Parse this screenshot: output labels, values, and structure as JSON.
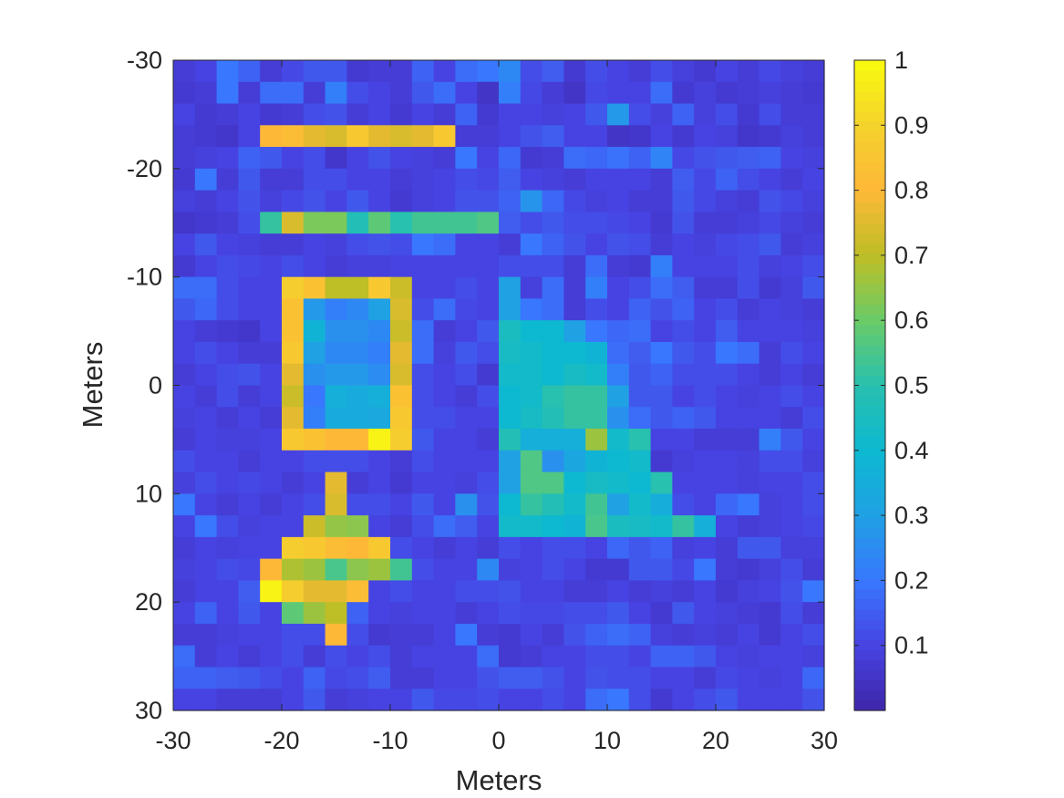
{
  "chart_data": {
    "type": "heatmap",
    "title": "",
    "xlabel": "Meters",
    "ylabel": "Meters",
    "xlim": [
      -30,
      30
    ],
    "ylim": [
      -30,
      30
    ],
    "y_direction": "reverse",
    "grid": false,
    "xticks": [
      -30,
      -20,
      -10,
      0,
      10,
      20,
      30
    ],
    "yticks": [
      -30,
      -20,
      -10,
      0,
      10,
      20,
      30
    ],
    "colormap": "parula",
    "colorbar": {
      "location": "right",
      "clim": [
        0,
        1
      ],
      "ticks": [
        0.1,
        0.2,
        0.3,
        0.4,
        0.5,
        0.6,
        0.7,
        0.8,
        0.9,
        1
      ],
      "tick_labels": [
        "0.1",
        "0.2",
        "0.3",
        "0.4",
        "0.5",
        "0.6",
        "0.7",
        "0.8",
        "0.9",
        "1"
      ]
    },
    "grid_shape": [
      30,
      30
    ],
    "cell_size_m": 2,
    "values": [
      [
        0.08,
        0.1,
        0.2,
        0.16,
        0.08,
        0.11,
        0.14,
        0.14,
        0.07,
        0.08,
        0.08,
        0.16,
        0.1,
        0.18,
        0.2,
        0.24,
        0.12,
        0.15,
        0.07,
        0.12,
        0.1,
        0.08,
        0.12,
        0.09,
        0.07,
        0.1,
        0.08,
        0.11,
        0.09,
        0.08
      ],
      [
        0.07,
        0.08,
        0.2,
        0.08,
        0.18,
        0.18,
        0.08,
        0.22,
        0.12,
        0.1,
        0.08,
        0.14,
        0.18,
        0.1,
        0.05,
        0.22,
        0.11,
        0.08,
        0.05,
        0.11,
        0.1,
        0.1,
        0.18,
        0.07,
        0.09,
        0.07,
        0.08,
        0.09,
        0.08,
        0.07
      ],
      [
        0.1,
        0.07,
        0.08,
        0.1,
        0.07,
        0.08,
        0.12,
        0.13,
        0.08,
        0.1,
        0.07,
        0.1,
        0.08,
        0.16,
        0.07,
        0.1,
        0.1,
        0.09,
        0.1,
        0.14,
        0.28,
        0.12,
        0.09,
        0.16,
        0.09,
        0.12,
        0.07,
        0.12,
        0.08,
        0.08
      ],
      [
        0.08,
        0.07,
        0.06,
        0.1,
        0.8,
        0.82,
        0.76,
        0.74,
        0.86,
        0.76,
        0.74,
        0.76,
        0.86,
        0.08,
        0.08,
        0.1,
        0.13,
        0.15,
        0.1,
        0.1,
        0.05,
        0.06,
        0.1,
        0.07,
        0.1,
        0.09,
        0.06,
        0.07,
        0.09,
        0.08
      ],
      [
        0.08,
        0.09,
        0.1,
        0.16,
        0.14,
        0.1,
        0.12,
        0.06,
        0.1,
        0.13,
        0.1,
        0.09,
        0.08,
        0.2,
        0.1,
        0.17,
        0.07,
        0.08,
        0.18,
        0.17,
        0.19,
        0.16,
        0.23,
        0.11,
        0.13,
        0.14,
        0.15,
        0.16,
        0.1,
        0.09
      ],
      [
        0.07,
        0.2,
        0.08,
        0.14,
        0.08,
        0.08,
        0.12,
        0.12,
        0.1,
        0.1,
        0.08,
        0.09,
        0.1,
        0.12,
        0.11,
        0.15,
        0.1,
        0.09,
        0.08,
        0.1,
        0.1,
        0.1,
        0.08,
        0.15,
        0.11,
        0.16,
        0.12,
        0.1,
        0.08,
        0.1
      ],
      [
        0.09,
        0.08,
        0.1,
        0.13,
        0.09,
        0.11,
        0.13,
        0.1,
        0.14,
        0.1,
        0.07,
        0.09,
        0.1,
        0.13,
        0.13,
        0.16,
        0.27,
        0.17,
        0.11,
        0.09,
        0.1,
        0.08,
        0.08,
        0.14,
        0.11,
        0.09,
        0.08,
        0.13,
        0.11,
        0.09
      ],
      [
        0.06,
        0.07,
        0.08,
        0.12,
        0.52,
        0.74,
        0.62,
        0.62,
        0.48,
        0.58,
        0.5,
        0.54,
        0.54,
        0.54,
        0.56,
        0.15,
        0.12,
        0.14,
        0.12,
        0.12,
        0.11,
        0.1,
        0.07,
        0.13,
        0.08,
        0.08,
        0.09,
        0.11,
        0.09,
        0.08
      ],
      [
        0.1,
        0.14,
        0.1,
        0.09,
        0.08,
        0.08,
        0.1,
        0.09,
        0.12,
        0.13,
        0.12,
        0.2,
        0.18,
        0.1,
        0.1,
        0.08,
        0.2,
        0.16,
        0.13,
        0.1,
        0.13,
        0.12,
        0.08,
        0.1,
        0.09,
        0.11,
        0.12,
        0.14,
        0.08,
        0.09
      ],
      [
        0.07,
        0.1,
        0.12,
        0.11,
        0.1,
        0.12,
        0.1,
        0.08,
        0.09,
        0.09,
        0.1,
        0.1,
        0.1,
        0.1,
        0.1,
        0.12,
        0.12,
        0.12,
        0.08,
        0.18,
        0.08,
        0.07,
        0.22,
        0.1,
        0.1,
        0.1,
        0.12,
        0.09,
        0.1,
        0.12
      ],
      [
        0.18,
        0.18,
        0.12,
        0.1,
        0.1,
        0.88,
        0.84,
        0.7,
        0.7,
        0.86,
        0.72,
        0.1,
        0.1,
        0.12,
        0.1,
        0.3,
        0.09,
        0.18,
        0.08,
        0.22,
        0.1,
        0.12,
        0.18,
        0.15,
        0.08,
        0.08,
        0.12,
        0.07,
        0.09,
        0.14
      ],
      [
        0.14,
        0.17,
        0.12,
        0.1,
        0.1,
        0.84,
        0.28,
        0.22,
        0.24,
        0.3,
        0.74,
        0.12,
        0.18,
        0.11,
        0.1,
        0.3,
        0.2,
        0.18,
        0.08,
        0.12,
        0.1,
        0.16,
        0.13,
        0.16,
        0.1,
        0.12,
        0.08,
        0.1,
        0.09,
        0.08
      ],
      [
        0.1,
        0.08,
        0.07,
        0.06,
        0.1,
        0.84,
        0.38,
        0.26,
        0.26,
        0.24,
        0.72,
        0.18,
        0.08,
        0.1,
        0.14,
        0.45,
        0.4,
        0.4,
        0.3,
        0.2,
        0.17,
        0.18,
        0.1,
        0.12,
        0.1,
        0.15,
        0.1,
        0.1,
        0.1,
        0.09
      ],
      [
        0.1,
        0.12,
        0.1,
        0.08,
        0.08,
        0.86,
        0.3,
        0.24,
        0.24,
        0.22,
        0.76,
        0.18,
        0.09,
        0.14,
        0.12,
        0.44,
        0.42,
        0.4,
        0.4,
        0.38,
        0.18,
        0.15,
        0.2,
        0.14,
        0.12,
        0.2,
        0.18,
        0.08,
        0.12,
        0.1
      ],
      [
        0.08,
        0.1,
        0.12,
        0.13,
        0.1,
        0.76,
        0.26,
        0.28,
        0.28,
        0.25,
        0.74,
        0.12,
        0.1,
        0.12,
        0.07,
        0.42,
        0.42,
        0.4,
        0.44,
        0.42,
        0.22,
        0.14,
        0.16,
        0.12,
        0.12,
        0.12,
        0.1,
        0.08,
        0.1,
        0.08
      ],
      [
        0.1,
        0.08,
        0.12,
        0.08,
        0.1,
        0.72,
        0.2,
        0.36,
        0.34,
        0.36,
        0.84,
        0.12,
        0.1,
        0.08,
        0.12,
        0.4,
        0.42,
        0.5,
        0.52,
        0.52,
        0.3,
        0.14,
        0.14,
        0.1,
        0.12,
        0.1,
        0.09,
        0.1,
        0.12,
        0.1
      ],
      [
        0.09,
        0.1,
        0.08,
        0.1,
        0.08,
        0.76,
        0.22,
        0.34,
        0.34,
        0.33,
        0.86,
        0.12,
        0.12,
        0.1,
        0.1,
        0.4,
        0.44,
        0.48,
        0.52,
        0.52,
        0.26,
        0.18,
        0.14,
        0.16,
        0.14,
        0.1,
        0.1,
        0.1,
        0.08,
        0.12
      ],
      [
        0.08,
        0.1,
        0.09,
        0.09,
        0.1,
        0.86,
        0.84,
        0.8,
        0.8,
        0.98,
        0.88,
        0.14,
        0.1,
        0.1,
        0.08,
        0.48,
        0.36,
        0.36,
        0.36,
        0.66,
        0.42,
        0.5,
        0.1,
        0.1,
        0.08,
        0.08,
        0.08,
        0.22,
        0.14,
        0.1
      ],
      [
        0.12,
        0.1,
        0.1,
        0.08,
        0.1,
        0.1,
        0.12,
        0.12,
        0.12,
        0.1,
        0.08,
        0.12,
        0.1,
        0.1,
        0.1,
        0.3,
        0.56,
        0.26,
        0.32,
        0.38,
        0.4,
        0.42,
        0.07,
        0.09,
        0.1,
        0.1,
        0.09,
        0.12,
        0.12,
        0.09
      ],
      [
        0.09,
        0.12,
        0.1,
        0.11,
        0.1,
        0.08,
        0.1,
        0.76,
        0.08,
        0.1,
        0.07,
        0.1,
        0.1,
        0.09,
        0.12,
        0.3,
        0.56,
        0.56,
        0.4,
        0.44,
        0.42,
        0.4,
        0.5,
        0.1,
        0.1,
        0.1,
        0.09,
        0.1,
        0.1,
        0.12
      ],
      [
        0.2,
        0.1,
        0.08,
        0.1,
        0.08,
        0.1,
        0.12,
        0.74,
        0.12,
        0.12,
        0.1,
        0.14,
        0.1,
        0.26,
        0.13,
        0.4,
        0.52,
        0.48,
        0.42,
        0.54,
        0.3,
        0.42,
        0.35,
        0.12,
        0.1,
        0.17,
        0.2,
        0.09,
        0.1,
        0.12
      ],
      [
        0.1,
        0.2,
        0.12,
        0.09,
        0.1,
        0.1,
        0.72,
        0.65,
        0.64,
        0.1,
        0.08,
        0.12,
        0.18,
        0.15,
        0.1,
        0.42,
        0.42,
        0.4,
        0.38,
        0.55,
        0.45,
        0.44,
        0.42,
        0.52,
        0.36,
        0.1,
        0.08,
        0.09,
        0.1,
        0.11
      ],
      [
        0.08,
        0.1,
        0.09,
        0.1,
        0.1,
        0.88,
        0.86,
        0.82,
        0.8,
        0.86,
        0.12,
        0.1,
        0.08,
        0.1,
        0.08,
        0.12,
        0.1,
        0.12,
        0.12,
        0.1,
        0.17,
        0.14,
        0.16,
        0.09,
        0.1,
        0.08,
        0.14,
        0.14,
        0.09,
        0.09
      ],
      [
        0.09,
        0.1,
        0.12,
        0.11,
        0.8,
        0.68,
        0.66,
        0.55,
        0.64,
        0.66,
        0.54,
        0.12,
        0.1,
        0.1,
        0.24,
        0.09,
        0.1,
        0.12,
        0.1,
        0.07,
        0.07,
        0.14,
        0.14,
        0.11,
        0.2,
        0.08,
        0.07,
        0.09,
        0.12,
        0.08
      ],
      [
        0.08,
        0.1,
        0.1,
        0.15,
        0.98,
        0.88,
        0.76,
        0.76,
        0.82,
        0.1,
        0.12,
        0.1,
        0.1,
        0.12,
        0.12,
        0.13,
        0.1,
        0.1,
        0.08,
        0.08,
        0.1,
        0.08,
        0.09,
        0.08,
        0.1,
        0.07,
        0.09,
        0.1,
        0.13,
        0.2
      ],
      [
        0.1,
        0.16,
        0.1,
        0.14,
        0.1,
        0.58,
        0.66,
        0.7,
        0.16,
        0.1,
        0.09,
        0.1,
        0.1,
        0.08,
        0.1,
        0.12,
        0.11,
        0.11,
        0.12,
        0.12,
        0.14,
        0.1,
        0.07,
        0.14,
        0.1,
        0.09,
        0.08,
        0.07,
        0.12,
        0.08
      ],
      [
        0.08,
        0.08,
        0.09,
        0.1,
        0.1,
        0.12,
        0.12,
        0.8,
        0.12,
        0.07,
        0.08,
        0.08,
        0.1,
        0.2,
        0.08,
        0.07,
        0.1,
        0.08,
        0.13,
        0.16,
        0.18,
        0.16,
        0.09,
        0.08,
        0.09,
        0.08,
        0.1,
        0.07,
        0.1,
        0.12
      ],
      [
        0.18,
        0.08,
        0.1,
        0.08,
        0.1,
        0.12,
        0.08,
        0.12,
        0.1,
        0.12,
        0.08,
        0.1,
        0.1,
        0.1,
        0.18,
        0.07,
        0.08,
        0.1,
        0.1,
        0.12,
        0.12,
        0.1,
        0.16,
        0.16,
        0.14,
        0.1,
        0.09,
        0.1,
        0.1,
        0.09
      ],
      [
        0.16,
        0.16,
        0.15,
        0.14,
        0.12,
        0.1,
        0.16,
        0.11,
        0.12,
        0.15,
        0.08,
        0.08,
        0.1,
        0.1,
        0.13,
        0.15,
        0.15,
        0.13,
        0.1,
        0.13,
        0.12,
        0.12,
        0.1,
        0.1,
        0.08,
        0.11,
        0.1,
        0.09,
        0.1,
        0.17
      ],
      [
        0.1,
        0.1,
        0.08,
        0.08,
        0.08,
        0.1,
        0.14,
        0.08,
        0.09,
        0.1,
        0.1,
        0.14,
        0.11,
        0.11,
        0.12,
        0.1,
        0.1,
        0.12,
        0.1,
        0.18,
        0.2,
        0.12,
        0.07,
        0.1,
        0.12,
        0.14,
        0.1,
        0.1,
        0.1,
        0.13
      ]
    ]
  }
}
